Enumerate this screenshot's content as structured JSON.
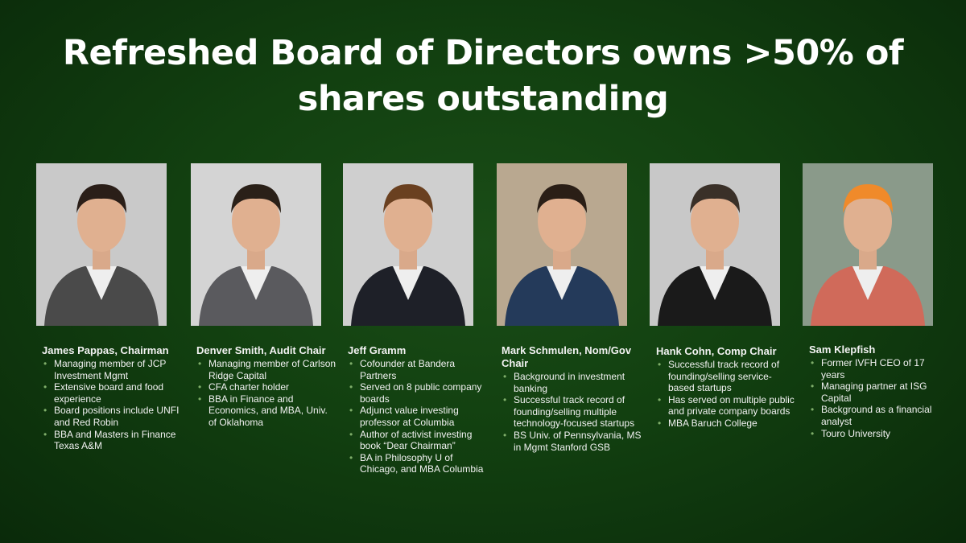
{
  "title": "Refreshed Board of Directors owns >50% of shares outstanding",
  "directors": [
    {
      "name": "James Pappas, Chairman",
      "bullets": [
        "Managing member of JCP Investment Mgmt",
        "Extensive board and food experience",
        "Board positions include UNFI and Red Robin",
        "BBA and Masters in Finance Texas A&M"
      ]
    },
    {
      "name": "Denver Smith, Audit Chair",
      "bullets": [
        "Managing member of Carlson Ridge Capital",
        "CFA charter holder",
        "BBA in Finance and Economics, and MBA, Univ. of Oklahoma"
      ]
    },
    {
      "name": "Jeff Gramm",
      "bullets": [
        "Cofounder at Bandera Partners",
        "Served on 8 public company boards",
        "Adjunct value investing professor at Columbia",
        "Author of activist investing book “Dear Chairman”",
        "BA in Philosophy U of Chicago, and MBA Columbia"
      ]
    },
    {
      "name": "Mark Schmulen, Nom/Gov Chair",
      "bullets": [
        "Background in investment banking",
        "Successful track record of founding/selling multiple technology-focused startups",
        "BS Univ. of Pennsylvania, MS in Mgmt Stanford GSB"
      ]
    },
    {
      "name": "Hank Cohn, Comp Chair",
      "bullets": [
        "Successful track record of founding/selling service-based startups",
        "Has served on multiple public and private company boards",
        "MBA Baruch College"
      ]
    },
    {
      "name": "Sam Klepfish",
      "bullets": [
        "Former IVFH CEO of 17 years",
        "Managing partner at ISG Capital",
        "Background as a financial analyst",
        "Touro University"
      ]
    }
  ],
  "colors": {
    "background": "#124010",
    "bullet": "#7fae6a"
  }
}
